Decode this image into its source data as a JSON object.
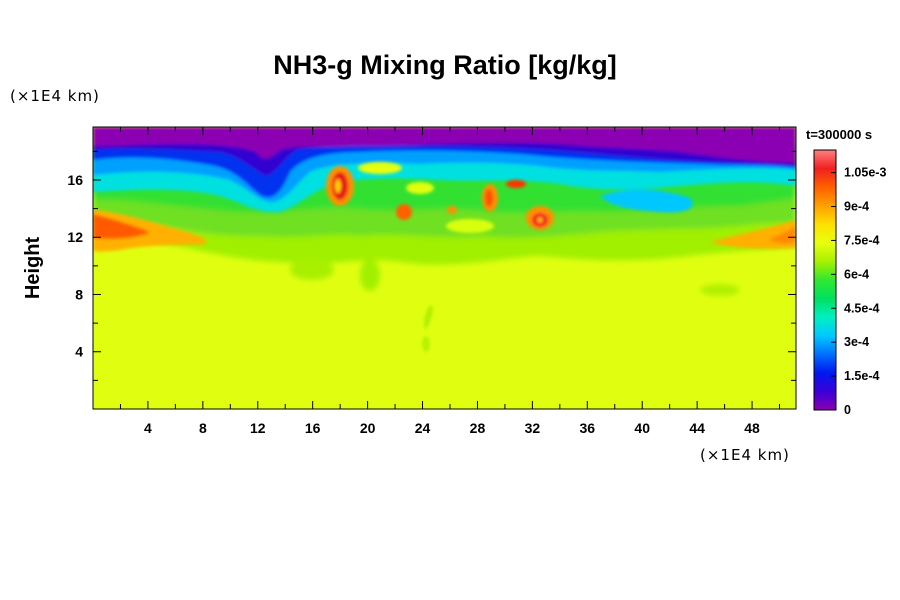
{
  "chart_data": {
    "type": "heatmap",
    "title": "NH3-g Mixing Ratio [kg/kg]",
    "ylabel": "Height",
    "x_unit": "(×1E4 km)",
    "y_unit": "(×1E4 km)",
    "time_label": "t=300000 s",
    "xlim": [
      0,
      51.2
    ],
    "ylim": [
      0,
      19.7
    ],
    "x_ticks": [
      "4",
      "8",
      "12",
      "16",
      "20",
      "24",
      "28",
      "32",
      "36",
      "40",
      "44",
      "48"
    ],
    "y_ticks": [
      "4",
      "8",
      "12",
      "16"
    ],
    "x_tick_values": [
      4,
      8,
      12,
      16,
      20,
      24,
      28,
      32,
      36,
      40,
      44,
      48
    ],
    "y_tick_values": [
      4,
      8,
      12,
      16
    ],
    "colorbar": {
      "min": 0,
      "max": 0.00115,
      "tick_labels": [
        "1.05e-3",
        "9e-4",
        "7.5e-4",
        "6e-4",
        "4.5e-4",
        "3e-4",
        "1.5e-4",
        "0"
      ],
      "tick_values": [
        0.00105,
        0.0009,
        0.00075,
        0.0006,
        0.00045,
        0.0003,
        0.00015,
        0
      ],
      "colors": [
        "#8a00b0",
        "#3a00d8",
        "#0018f0",
        "#0070ff",
        "#00c8ff",
        "#00f0c0",
        "#00e060",
        "#30e830",
        "#a8f000",
        "#e8ff10",
        "#ffe000",
        "#ffa000",
        "#ff6000",
        "#f02020",
        "#ff8080"
      ]
    }
  }
}
